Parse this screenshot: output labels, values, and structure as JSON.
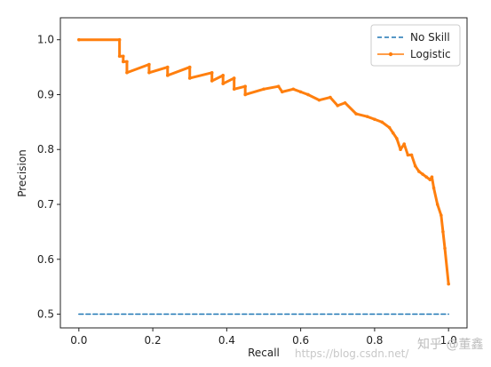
{
  "chart_data": {
    "type": "line",
    "xlabel": "Recall",
    "ylabel": "Precision",
    "xlim": [
      -0.05,
      1.05
    ],
    "ylim": [
      0.475,
      1.04
    ],
    "xticks": [
      "0.0",
      "0.2",
      "0.4",
      "0.6",
      "0.8",
      "1.0"
    ],
    "yticks": [
      "0.5",
      "0.6",
      "0.7",
      "0.8",
      "0.9",
      "1.0"
    ],
    "grid": false,
    "legend_position": "top-right",
    "series": [
      {
        "name": "No Skill",
        "style": "dashed",
        "color": "#1f77b4",
        "x": [
          0.0,
          1.0
        ],
        "y": [
          0.5,
          0.5
        ]
      },
      {
        "name": "Logistic",
        "style": "solid-with-markers",
        "color": "#ff7f0e",
        "x": [
          0.0,
          0.11,
          0.11,
          0.12,
          0.12,
          0.13,
          0.13,
          0.19,
          0.19,
          0.24,
          0.24,
          0.3,
          0.3,
          0.36,
          0.36,
          0.39,
          0.39,
          0.42,
          0.42,
          0.45,
          0.45,
          0.5,
          0.54,
          0.55,
          0.58,
          0.6,
          0.62,
          0.65,
          0.68,
          0.7,
          0.72,
          0.75,
          0.78,
          0.8,
          0.82,
          0.84,
          0.85,
          0.86,
          0.87,
          0.88,
          0.89,
          0.9,
          0.91,
          0.92,
          0.93,
          0.94,
          0.95,
          0.955,
          0.96,
          0.97,
          0.98,
          0.985,
          0.99,
          1.0
        ],
        "y": [
          1.0,
          1.0,
          0.97,
          0.97,
          0.96,
          0.96,
          0.94,
          0.955,
          0.94,
          0.95,
          0.935,
          0.95,
          0.93,
          0.94,
          0.925,
          0.935,
          0.92,
          0.93,
          0.91,
          0.915,
          0.9,
          0.91,
          0.915,
          0.905,
          0.91,
          0.905,
          0.9,
          0.89,
          0.895,
          0.88,
          0.885,
          0.865,
          0.86,
          0.855,
          0.85,
          0.84,
          0.83,
          0.82,
          0.8,
          0.81,
          0.79,
          0.79,
          0.77,
          0.76,
          0.755,
          0.75,
          0.745,
          0.75,
          0.73,
          0.7,
          0.68,
          0.65,
          0.62,
          0.555
        ]
      }
    ]
  },
  "watermark": {
    "url": "https://blog.csdn.net/",
    "author": "知乎 @董鑫"
  }
}
